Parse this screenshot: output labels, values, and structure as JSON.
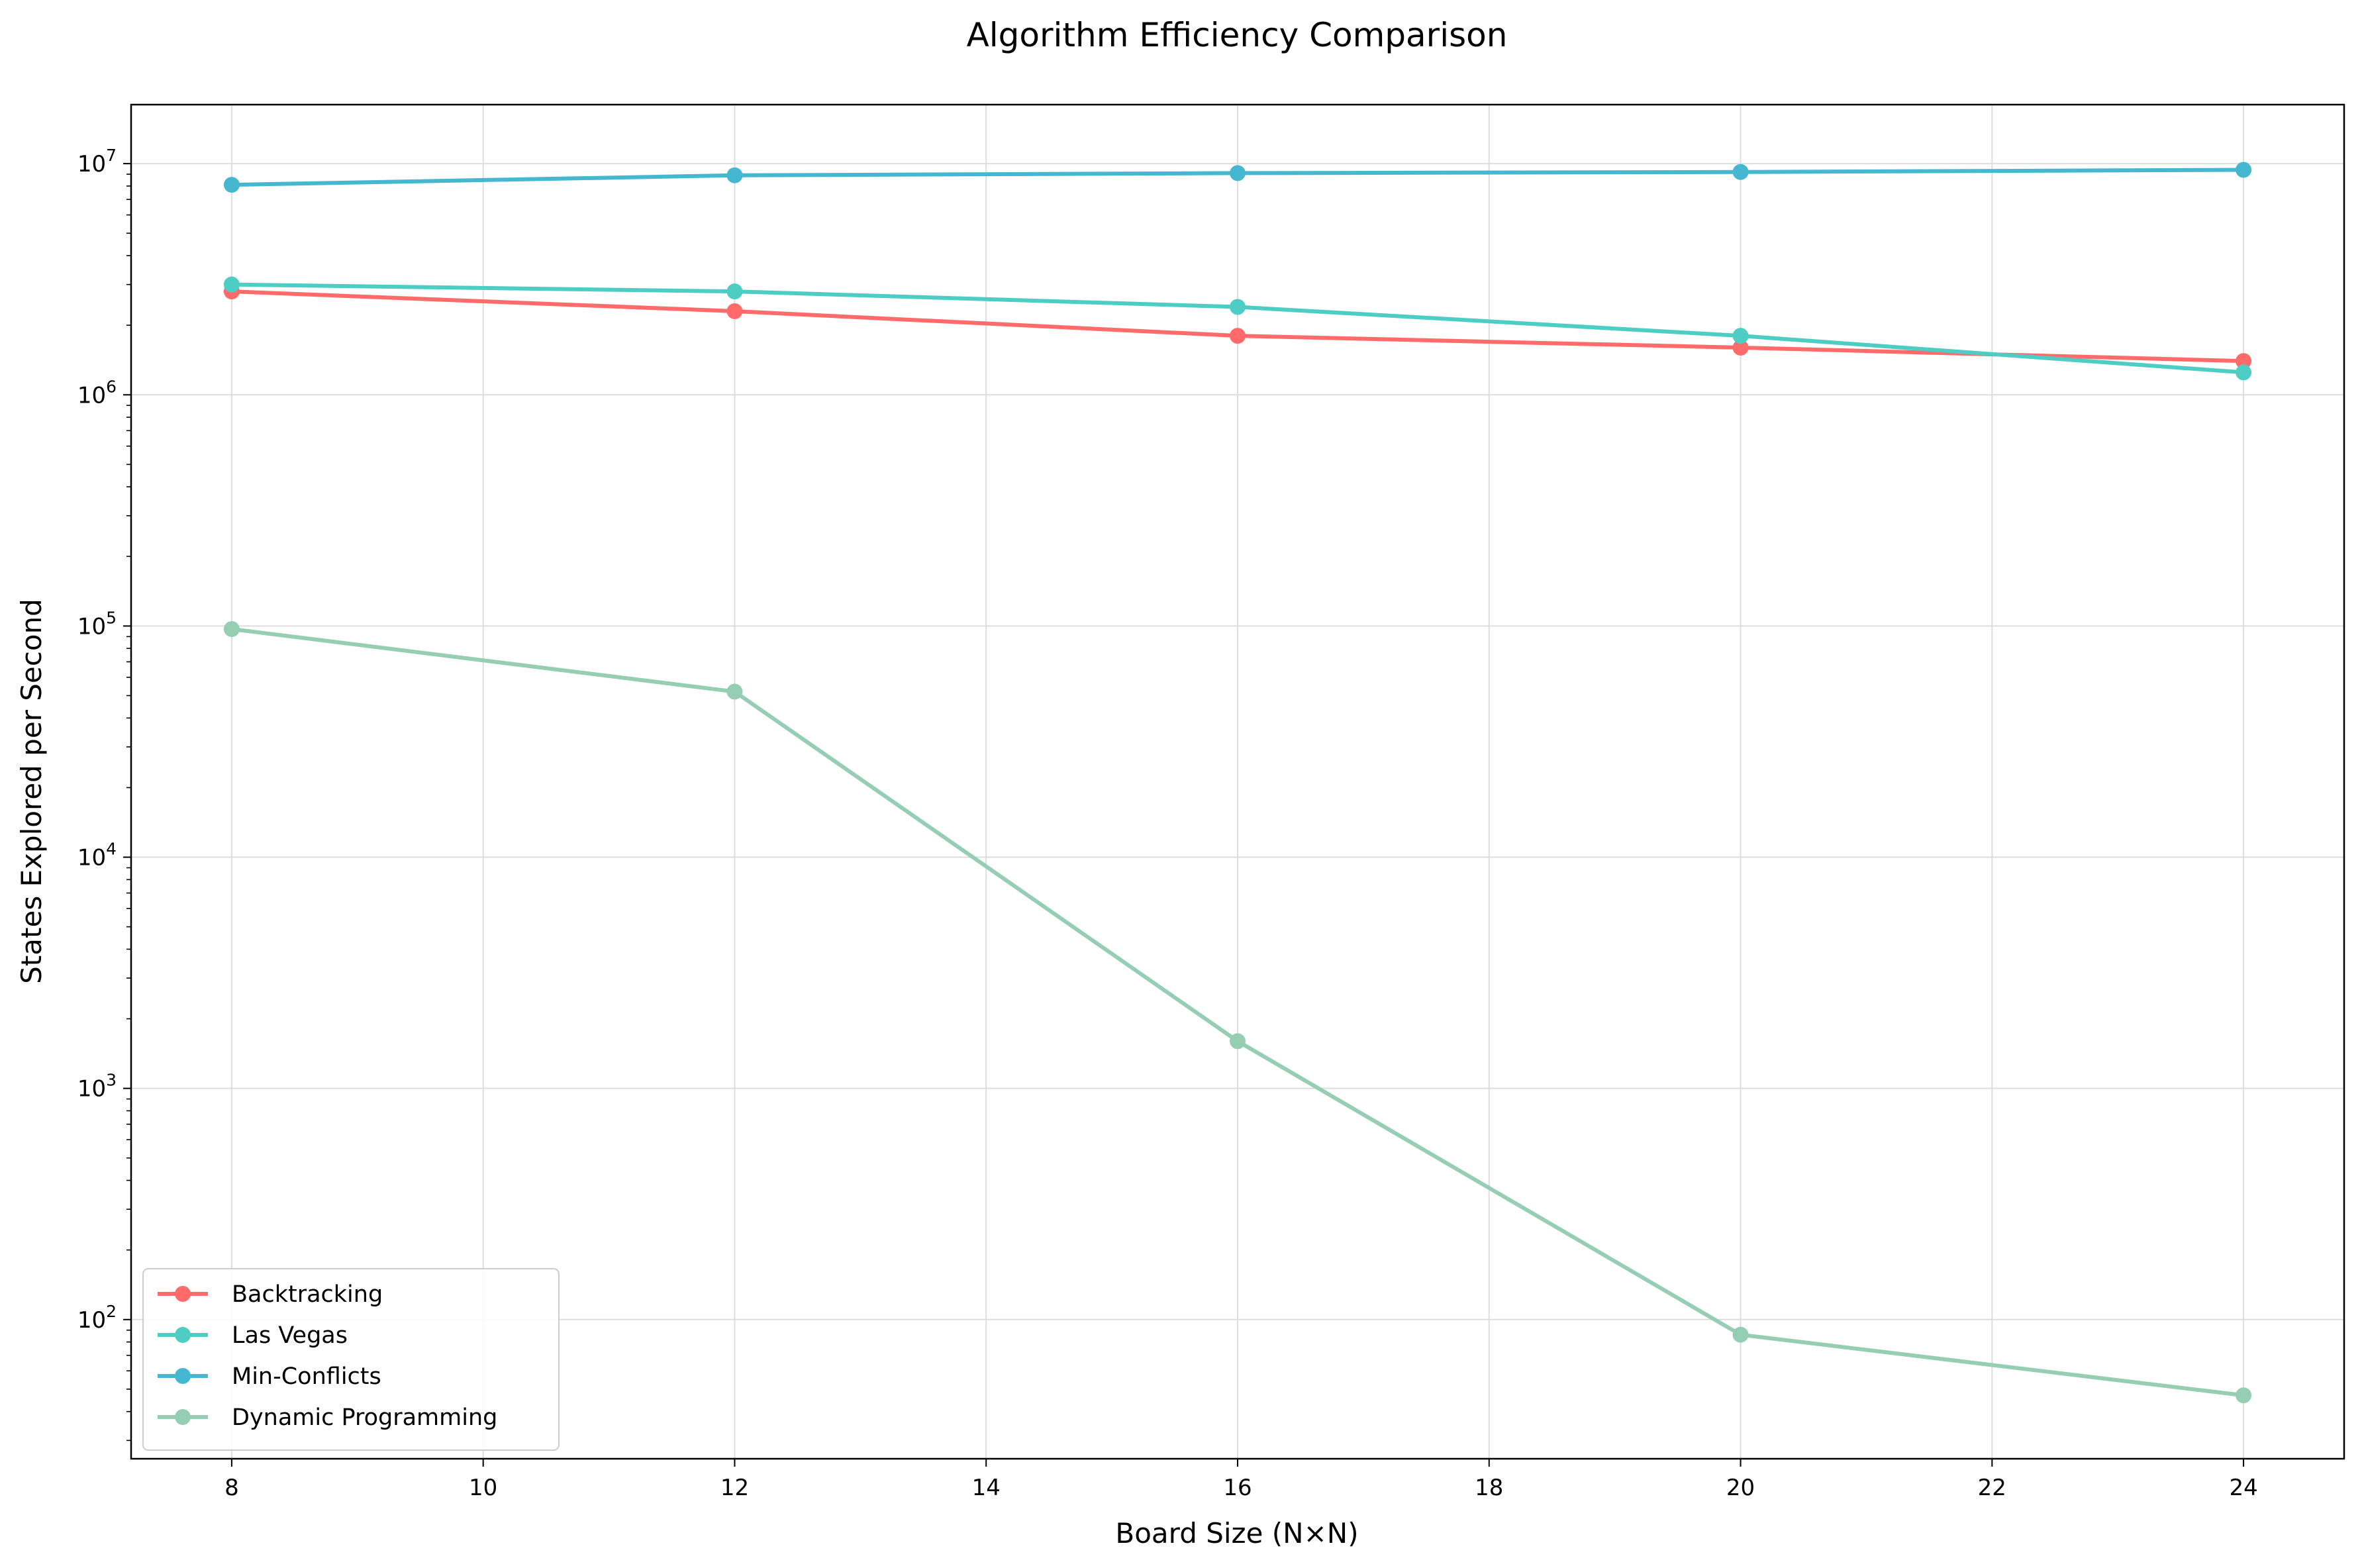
{
  "chart_data": {
    "type": "line",
    "title": "Algorithm Efficiency Comparison",
    "xlabel": "Board Size (N×N)",
    "ylabel": "States Explored per Second",
    "x": [
      8,
      12,
      16,
      20,
      24
    ],
    "x_ticks": [
      8,
      10,
      12,
      14,
      16,
      18,
      20,
      22,
      24
    ],
    "x_tick_labels": [
      "8",
      "10",
      "12",
      "14",
      "16",
      "18",
      "20",
      "22",
      "24"
    ],
    "xlim": [
      7.2,
      24.8
    ],
    "y_scale": "log",
    "ylim": [
      25,
      18000000
    ],
    "y_ticks": [
      100,
      1000,
      10000,
      100000,
      1000000,
      10000000
    ],
    "y_tick_labels": [
      {
        "base": "10",
        "exp": "2"
      },
      {
        "base": "10",
        "exp": "3"
      },
      {
        "base": "10",
        "exp": "4"
      },
      {
        "base": "10",
        "exp": "5"
      },
      {
        "base": "10",
        "exp": "6"
      },
      {
        "base": "10",
        "exp": "7"
      }
    ],
    "grid": true,
    "legend_position": "lower-left",
    "series": [
      {
        "name": "Backtracking",
        "color": "#ff6b6b",
        "values": [
          2800000,
          2300000,
          1800000,
          1600000,
          1400000
        ]
      },
      {
        "name": "Las Vegas",
        "color": "#4ecdc4",
        "values": [
          3000000,
          2800000,
          2400000,
          1800000,
          1250000
        ]
      },
      {
        "name": "Min-Conflicts",
        "color": "#45b7d1",
        "values": [
          8100000,
          8900000,
          9100000,
          9200000,
          9400000
        ]
      },
      {
        "name": "Dynamic Programming",
        "color": "#96ceb4",
        "values": [
          97000,
          52000,
          1600,
          86,
          47
        ]
      }
    ]
  }
}
